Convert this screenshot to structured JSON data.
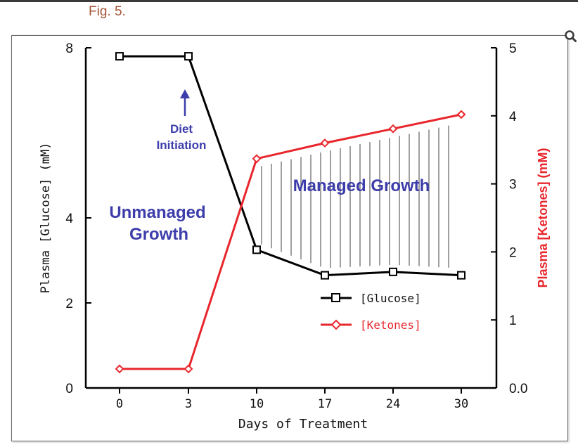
{
  "caption": "Fig. 5.",
  "chart_data": {
    "type": "line",
    "x_positions": [
      0,
      3,
      10,
      17,
      24,
      30
    ],
    "categories": [
      "0",
      "3",
      "10",
      "17",
      "24",
      "30"
    ],
    "xlabel": "Days of Treatment",
    "left_axis": {
      "label": "Plasma [Glucose] (mM)",
      "ylim": [
        0,
        8
      ],
      "ticks": [
        0,
        2,
        4,
        8
      ],
      "tick_labels": [
        "0",
        "2",
        "4",
        "8"
      ]
    },
    "right_axis": {
      "label": "Plasma [Ketones] (mM)",
      "ylim": [
        0,
        5
      ],
      "ticks": [
        0,
        1,
        2,
        3,
        4,
        5
      ],
      "tick_labels": [
        "0.0",
        "1",
        "2",
        "3",
        "4",
        "5"
      ]
    },
    "series": [
      {
        "name": "[Glucose]",
        "axis": "left",
        "color": "#000000",
        "marker": "square",
        "values": [
          7.8,
          7.8,
          3.25,
          2.65,
          2.73,
          2.65
        ]
      },
      {
        "name": "[Ketones]",
        "axis": "right",
        "color": "#e8262c",
        "marker": "diamond",
        "values": [
          0.28,
          0.28,
          3.37,
          3.6,
          3.81,
          4.02
        ]
      }
    ],
    "annotations": {
      "diet": [
        "Diet",
        "Initiation"
      ],
      "unmanaged": [
        "Unmanaged",
        "Growth"
      ],
      "managed": "Managed Growth"
    },
    "annotation_color": "#3d3dab",
    "hatch_between": {
      "from_day": 10,
      "to_day": 30
    }
  }
}
